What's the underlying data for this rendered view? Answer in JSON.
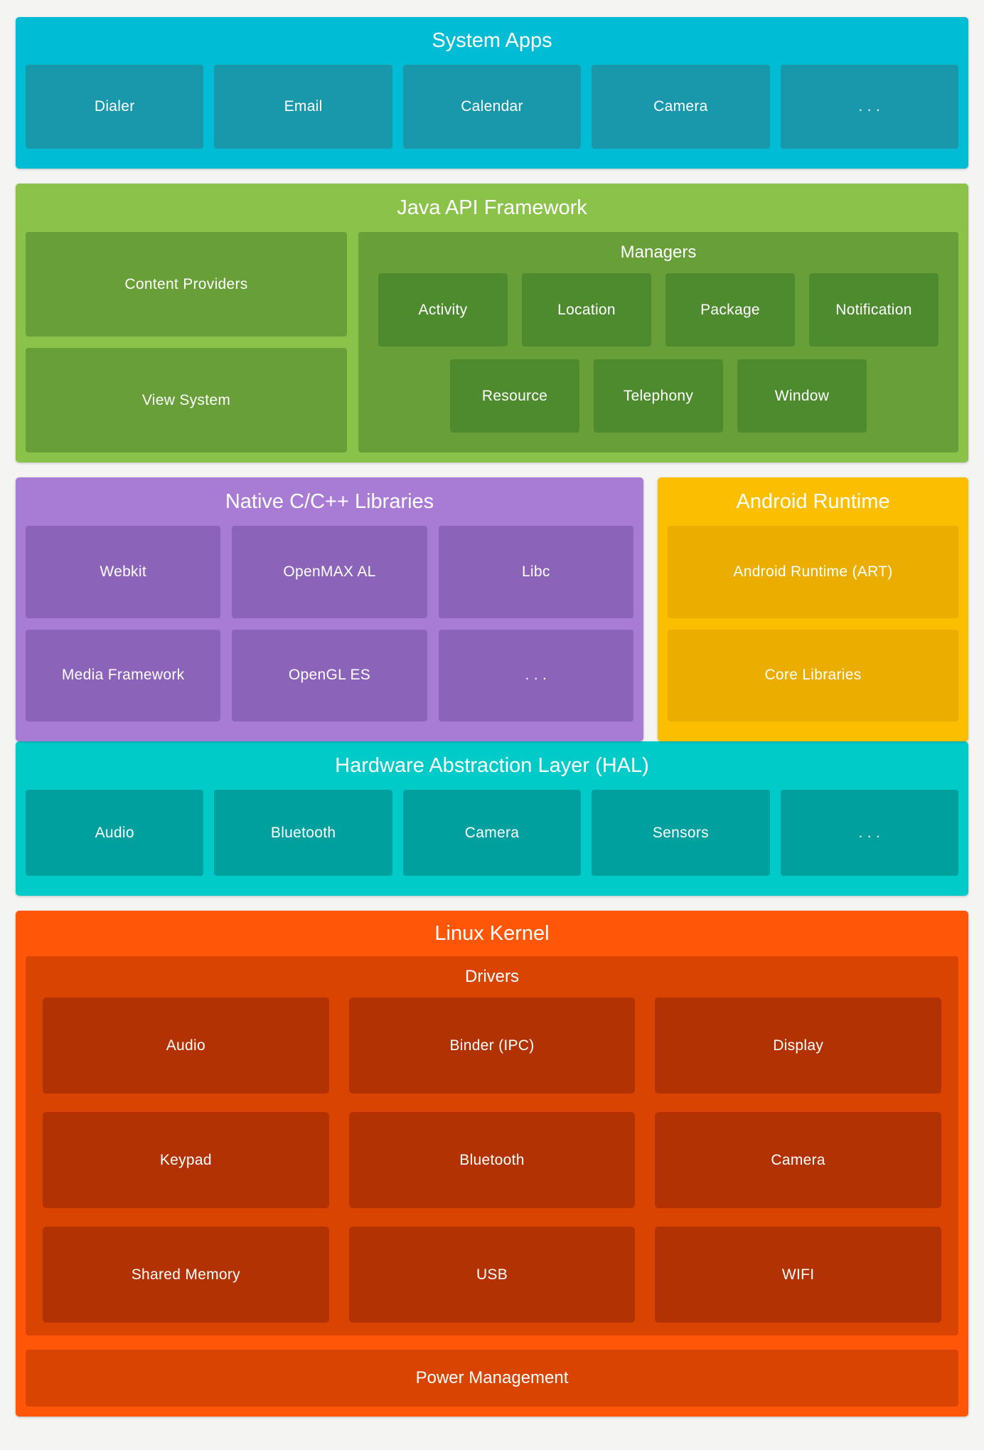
{
  "palette": {
    "page_bg": "#F4F4F3",
    "system_apps": {
      "bg": "#00BCD4",
      "box": "#1A98AB"
    },
    "java": {
      "bg": "#8BC34A",
      "box": "#689F38",
      "chip": "#4E8A2E"
    },
    "native": {
      "bg": "#A87CD5",
      "box": "#8B63B8"
    },
    "runtime": {
      "bg": "#FCBE00",
      "box": "#EAAD00"
    },
    "hal": {
      "bg": "#00CBC9",
      "box": "#00A09E"
    },
    "kernel": {
      "bg": "#FF5608",
      "container": "#D94403",
      "box": "#B23203"
    },
    "text": "#FFFFFF"
  },
  "sections": {
    "system_apps": {
      "title": "System Apps",
      "items": [
        "Dialer",
        "Email",
        "Calendar",
        "Camera",
        ". . ."
      ]
    },
    "java": {
      "title": "Java API Framework",
      "left": [
        "Content Providers",
        "View System"
      ],
      "managers": {
        "title": "Managers",
        "row1": [
          "Activity",
          "Location",
          "Package",
          "Notification"
        ],
        "row2": [
          "Resource",
          "Telephony",
          "Window"
        ]
      }
    },
    "native": {
      "title": "Native C/C++ Libraries",
      "row1": [
        "Webkit",
        "OpenMAX AL",
        "Libc"
      ],
      "row2": [
        "Media Framework",
        "OpenGL ES",
        ". . ."
      ]
    },
    "runtime": {
      "title": "Android Runtime",
      "items": [
        "Android Runtime (ART)",
        "Core Libraries"
      ]
    },
    "hal": {
      "title": "Hardware Abstraction Layer (HAL)",
      "items": [
        "Audio",
        "Bluetooth",
        "Camera",
        "Sensors",
        ". . ."
      ]
    },
    "kernel": {
      "title": "Linux Kernel",
      "drivers": {
        "title": "Drivers",
        "row1": [
          "Audio",
          "Binder (IPC)",
          "Display"
        ],
        "row2": [
          "Keypad",
          "Bluetooth",
          "Camera"
        ],
        "row3": [
          "Shared Memory",
          "USB",
          "WIFI"
        ]
      },
      "power": "Power Management"
    }
  }
}
